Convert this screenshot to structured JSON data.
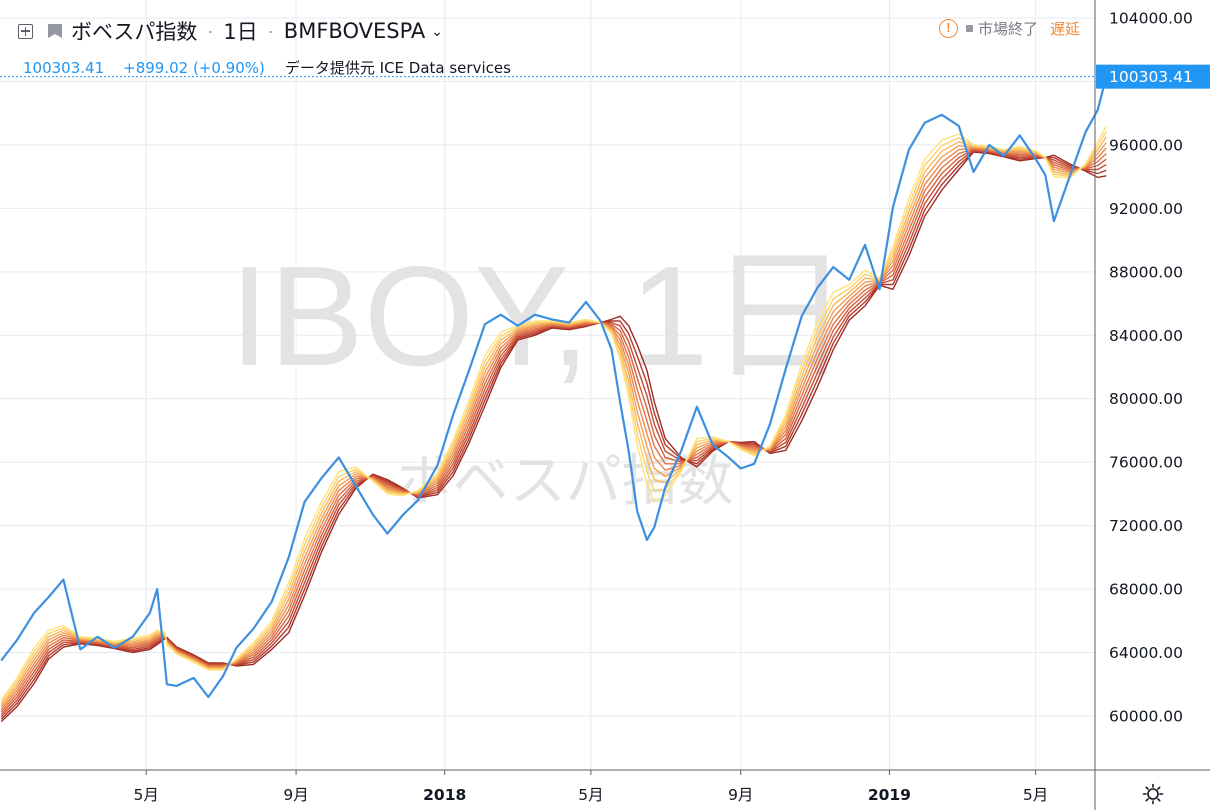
{
  "header": {
    "symbol_name": "ボベスパ指数",
    "interval": "1日",
    "exchange": "BMFBOVESPA",
    "last": "100303.41",
    "change": "+899.02 (+0.90%)",
    "data_source": "データ提供元 ICE Data services",
    "market_status": "市場終了",
    "delay_label": "遅延"
  },
  "watermark": {
    "line1": "IBOY, 1日",
    "line2": "ボベスパ指数"
  },
  "colors": {
    "price_line": "#3d8fe0",
    "price_label_bg": "#2196f3",
    "grid": "#e7eaf0",
    "axis_border": "#5d606b",
    "axis_text": "#131722",
    "watermark": "#e3e3e3",
    "warning": "#ef8b3a",
    "ribbon": [
      "#ffe27a",
      "#fdd06b",
      "#f7b85d",
      "#f29e54",
      "#eb864d",
      "#e07245",
      "#d35f3e",
      "#c44c36",
      "#b3392d",
      "#9e2a24"
    ]
  },
  "chart_data": {
    "type": "line",
    "title": "",
    "xlabel": "",
    "ylabel": "",
    "ylim": [
      57000,
      105000
    ],
    "y_ticks": [
      104000,
      100000,
      96000,
      92000,
      88000,
      84000,
      80000,
      76000,
      72000,
      68000,
      64000,
      60000
    ],
    "y_tick_labels": [
      "104000.00",
      "100000.00",
      "96000.00",
      "92000.00",
      "88000.00",
      "84000.00",
      "80000.00",
      "76000.00",
      "72000.00",
      "68000.00",
      "64000.00",
      "60000.00"
    ],
    "last_price_label": "100303.41",
    "last_value": 100303.41,
    "x_range": [
      "2017-01-02",
      "2019-06-28"
    ],
    "x_ticks": [
      {
        "date": "2017-05-01",
        "label": "5月",
        "bold": false
      },
      {
        "date": "2017-09-01",
        "label": "9月",
        "bold": false
      },
      {
        "date": "2018-01-01",
        "label": "2018",
        "bold": true
      },
      {
        "date": "2018-05-01",
        "label": "5月",
        "bold": false
      },
      {
        "date": "2018-09-01",
        "label": "9月",
        "bold": false
      },
      {
        "date": "2019-01-01",
        "label": "2019",
        "bold": true
      },
      {
        "date": "2019-05-01",
        "label": "5月",
        "bold": false
      }
    ],
    "grid": true,
    "series": [
      {
        "style": "price",
        "x": [
          "2017-01-02",
          "2017-01-15",
          "2017-01-29",
          "2017-02-10",
          "2017-02-22",
          "2017-03-08",
          "2017-03-22",
          "2017-04-05",
          "2017-04-20",
          "2017-05-04",
          "2017-05-10",
          "2017-05-16",
          "2017-05-18",
          "2017-05-26",
          "2017-06-09",
          "2017-06-21",
          "2017-07-03",
          "2017-07-14",
          "2017-07-28",
          "2017-08-12",
          "2017-08-26",
          "2017-09-08",
          "2017-09-22",
          "2017-10-06",
          "2017-10-20",
          "2017-11-03",
          "2017-11-15",
          "2017-11-28",
          "2017-12-10",
          "2017-12-26",
          "2018-01-08",
          "2018-01-21",
          "2018-02-03",
          "2018-02-16",
          "2018-03-02",
          "2018-03-16",
          "2018-03-30",
          "2018-04-13",
          "2018-04-27",
          "2018-05-09",
          "2018-05-18",
          "2018-05-25",
          "2018-06-01",
          "2018-06-08",
          "2018-06-16",
          "2018-06-22",
          "2018-07-01",
          "2018-07-14",
          "2018-07-27",
          "2018-08-09",
          "2018-08-22",
          "2018-09-01",
          "2018-09-12",
          "2018-09-25",
          "2018-10-08",
          "2018-10-21",
          "2018-11-03",
          "2018-11-16",
          "2018-11-29",
          "2018-12-12",
          "2018-12-24",
          "2019-01-04",
          "2019-01-17",
          "2019-01-30",
          "2019-02-13",
          "2019-02-27",
          "2019-03-11",
          "2019-03-24",
          "2019-04-05",
          "2019-04-18",
          "2019-05-02",
          "2019-05-09",
          "2019-05-16",
          "2019-05-29",
          "2019-06-11",
          "2019-06-21",
          "2019-06-28"
        ],
        "values": [
          63500,
          64800,
          66500,
          67500,
          68600,
          64200,
          65000,
          64300,
          65000,
          66500,
          68000,
          63500,
          62000,
          61900,
          62400,
          61200,
          62500,
          64300,
          65500,
          67200,
          70000,
          73500,
          75000,
          76300,
          74500,
          72700,
          71500,
          72700,
          73600,
          75800,
          79000,
          81800,
          84700,
          85300,
          84600,
          85300,
          85000,
          84800,
          86100,
          84900,
          83100,
          79800,
          76700,
          72900,
          71100,
          71900,
          74400,
          76700,
          79500,
          77100,
          76300,
          75600,
          75900,
          78400,
          81900,
          85200,
          87000,
          88300,
          87500,
          89700,
          86900,
          92100,
          95700,
          97400,
          97900,
          97200,
          94300,
          96000,
          95300,
          96600,
          95000,
          94100,
          91200,
          94000,
          96800,
          98200,
          100303.41
        ]
      },
      {
        "style": "ema",
        "values": [
          61000,
          62400,
          64300,
          65400,
          65700,
          65000,
          64900,
          64700,
          64900,
          65100,
          65400,
          65300,
          64500,
          63900,
          63400,
          62900,
          62900,
          63600,
          64600,
          66000,
          68400,
          71200,
          73500,
          75400,
          75700,
          74800,
          74000,
          73900,
          74200,
          75300,
          77400,
          79900,
          82700,
          84200,
          84600,
          84900,
          84900,
          84800,
          85000,
          84800,
          84100,
          82500,
          80100,
          77100,
          74600,
          73500,
          73900,
          75400,
          77500,
          77600,
          77300,
          76800,
          76400,
          77000,
          79000,
          82200,
          84800,
          86700,
          87200,
          88100,
          87600,
          89600,
          92600,
          95100,
          96300,
          96700,
          96000,
          95900,
          95700,
          95900,
          95600,
          95200,
          94000,
          93900,
          94800,
          96200,
          97200
        ]
      },
      {
        "style": "ema",
        "values": [
          60850,
          62200,
          64050,
          65200,
          65550,
          64950,
          64850,
          64650,
          64800,
          65000,
          65300,
          65250,
          64550,
          63950,
          63450,
          62950,
          62950,
          63550,
          64450,
          65800,
          68050,
          70800,
          73150,
          75100,
          75550,
          74850,
          74100,
          73950,
          74150,
          75150,
          77150,
          79600,
          82350,
          83950,
          84500,
          84800,
          84850,
          84750,
          84950,
          84800,
          84200,
          82800,
          80600,
          77800,
          75400,
          74200,
          74300,
          75500,
          77300,
          77500,
          77300,
          76850,
          76500,
          76950,
          78750,
          81800,
          84350,
          86300,
          86950,
          87850,
          87550,
          89300,
          92200,
          94700,
          95950,
          96450,
          95950,
          95850,
          95650,
          95800,
          95550,
          95200,
          94150,
          94000,
          94750,
          95950,
          96850
        ]
      },
      {
        "style": "ema",
        "values": [
          60700,
          62000,
          63800,
          65000,
          65400,
          64900,
          64800,
          64600,
          64700,
          64900,
          65200,
          65200,
          64600,
          64000,
          63500,
          63000,
          63000,
          63500,
          64300,
          65600,
          67700,
          70400,
          72800,
          74800,
          75400,
          74900,
          74200,
          74000,
          74100,
          75000,
          76900,
          79300,
          82000,
          83700,
          84400,
          84700,
          84800,
          84700,
          84900,
          84800,
          84300,
          83100,
          81100,
          78500,
          76200,
          74900,
          74700,
          75600,
          77100,
          77400,
          77300,
          76900,
          76600,
          76900,
          78500,
          81400,
          83900,
          85900,
          86700,
          87600,
          87500,
          89000,
          91800,
          94300,
          95600,
          96200,
          95900,
          95800,
          95600,
          95700,
          95500,
          95200,
          94300,
          94100,
          94700,
          95700,
          96500
        ]
      },
      {
        "style": "ema",
        "values": [
          60550,
          61800,
          63550,
          64800,
          65250,
          64850,
          64750,
          64550,
          64600,
          64800,
          65100,
          65150,
          64650,
          64050,
          63550,
          63050,
          63050,
          63450,
          64150,
          65400,
          67350,
          70000,
          72450,
          74500,
          75250,
          74950,
          74300,
          74050,
          74050,
          74850,
          76650,
          79000,
          81650,
          83450,
          84300,
          84600,
          84750,
          84650,
          84850,
          84800,
          84400,
          83400,
          81600,
          79200,
          77000,
          75600,
          75100,
          75700,
          76900,
          77300,
          77300,
          76950,
          76700,
          76850,
          78250,
          81000,
          83450,
          85500,
          86450,
          87350,
          87450,
          88700,
          91400,
          93900,
          95250,
          95950,
          95850,
          95750,
          95550,
          95600,
          95450,
          95200,
          94450,
          94200,
          94650,
          95450,
          96150
        ]
      },
      {
        "style": "ema",
        "values": [
          60400,
          61600,
          63300,
          64600,
          65100,
          64800,
          64700,
          64500,
          64500,
          64700,
          65000,
          65100,
          64700,
          64100,
          63600,
          63100,
          63100,
          63400,
          64000,
          65200,
          67000,
          69600,
          72100,
          74200,
          75100,
          75000,
          74400,
          74100,
          74000,
          74700,
          76400,
          78700,
          81300,
          83200,
          84200,
          84500,
          84700,
          84600,
          84800,
          84800,
          84500,
          83700,
          82100,
          79900,
          77800,
          76300,
          75500,
          75800,
          76700,
          77200,
          77300,
          77000,
          76800,
          76800,
          78000,
          80600,
          83000,
          85100,
          86200,
          87100,
          87400,
          88400,
          91000,
          93500,
          94900,
          95700,
          95800,
          95700,
          95500,
          95500,
          95400,
          95200,
          94600,
          94300,
          94600,
          95200,
          95800
        ]
      },
      {
        "style": "ema",
        "values": [
          60250,
          61400,
          63050,
          64400,
          64950,
          64750,
          64650,
          64450,
          64400,
          64600,
          64900,
          65050,
          64750,
          64150,
          63650,
          63150,
          63150,
          63350,
          63850,
          65000,
          66650,
          69200,
          71750,
          73900,
          74950,
          75050,
          74500,
          74150,
          73950,
          74550,
          76150,
          78400,
          80950,
          82950,
          84100,
          84400,
          84650,
          84550,
          84750,
          84800,
          84600,
          84000,
          82600,
          80600,
          78600,
          77000,
          75900,
          75900,
          76500,
          77100,
          77300,
          77050,
          76900,
          76750,
          77750,
          80200,
          82550,
          84700,
          85950,
          86850,
          87350,
          88100,
          90600,
          93100,
          94550,
          95450,
          95750,
          95650,
          95450,
          95400,
          95350,
          95200,
          94750,
          94400,
          94550,
          94950,
          95450
        ]
      },
      {
        "style": "ema",
        "values": [
          60100,
          61200,
          62800,
          64200,
          64800,
          64700,
          64600,
          64400,
          64300,
          64500,
          64800,
          65000,
          64800,
          64200,
          63700,
          63200,
          63200,
          63300,
          63700,
          64800,
          66300,
          68800,
          71400,
          73600,
          74800,
          75100,
          74600,
          74200,
          73900,
          74400,
          75900,
          78100,
          80600,
          82700,
          84000,
          84300,
          84600,
          84500,
          84700,
          84800,
          84700,
          84300,
          83100,
          81300,
          79400,
          77700,
          76300,
          76000,
          76300,
          77000,
          77300,
          77100,
          77000,
          76700,
          77500,
          79800,
          82100,
          84300,
          85700,
          86600,
          87300,
          87800,
          90200,
          92700,
          94200,
          95200,
          95700,
          95600,
          95400,
          95300,
          95300,
          95200,
          94900,
          94500,
          94500,
          94700,
          95100
        ]
      },
      {
        "style": "ema",
        "values": [
          59950,
          61000,
          62550,
          64000,
          64650,
          64650,
          64550,
          64350,
          64200,
          64400,
          64700,
          64950,
          64850,
          64250,
          63750,
          63250,
          63250,
          63250,
          63550,
          64600,
          65950,
          68400,
          71050,
          73300,
          74650,
          75150,
          74700,
          74250,
          73850,
          74250,
          75650,
          77800,
          80250,
          82450,
          83900,
          84200,
          84550,
          84450,
          84650,
          84800,
          84800,
          84600,
          83600,
          82000,
          80200,
          78400,
          76700,
          76100,
          76100,
          76900,
          77300,
          77150,
          77100,
          76650,
          77250,
          79400,
          81650,
          83900,
          85450,
          86350,
          87250,
          87500,
          89800,
          92300,
          93850,
          94950,
          95650,
          95550,
          95350,
          95200,
          95250,
          95200,
          95050,
          94600,
          94450,
          94450,
          94750
        ]
      },
      {
        "style": "ema",
        "values": [
          59800,
          60800,
          62300,
          63800,
          64500,
          64600,
          64500,
          64300,
          64100,
          64300,
          64600,
          64900,
          64900,
          64300,
          63800,
          63300,
          63300,
          63200,
          63400,
          64400,
          65600,
          68000,
          70700,
          73000,
          74500,
          75200,
          74800,
          74300,
          73800,
          74100,
          75400,
          77500,
          79900,
          82200,
          83800,
          84100,
          84500,
          84400,
          84600,
          84800,
          84900,
          84900,
          84100,
          82700,
          81000,
          79100,
          77100,
          76200,
          75900,
          76800,
          77300,
          77200,
          77200,
          76600,
          77000,
          79000,
          81200,
          83500,
          85200,
          86100,
          87200,
          87200,
          89400,
          91900,
          93500,
          94700,
          95600,
          95500,
          95300,
          95100,
          95200,
          95200,
          95200,
          94700,
          94400,
          94200,
          94400
        ]
      },
      {
        "style": "ema",
        "values": [
          59650,
          60600,
          62050,
          63600,
          64350,
          64550,
          64450,
          64250,
          64000,
          64200,
          64500,
          64850,
          64950,
          64350,
          63850,
          63350,
          63350,
          63150,
          63250,
          64200,
          65250,
          67600,
          70350,
          72700,
          74350,
          75250,
          74900,
          74350,
          73750,
          73950,
          75150,
          77200,
          79550,
          81950,
          83700,
          84000,
          84450,
          84350,
          84550,
          84800,
          85000,
          85200,
          84600,
          83400,
          81800,
          79800,
          77500,
          76300,
          75700,
          76700,
          77300,
          77250,
          77300,
          76550,
          76750,
          78600,
          80750,
          83100,
          84950,
          85850,
          87150,
          86900,
          89000,
          91500,
          93150,
          94450,
          95550,
          95450,
          95250,
          95000,
          95150,
          95200,
          95350,
          94800,
          94350,
          93950,
          94050
        ]
      }
    ]
  }
}
